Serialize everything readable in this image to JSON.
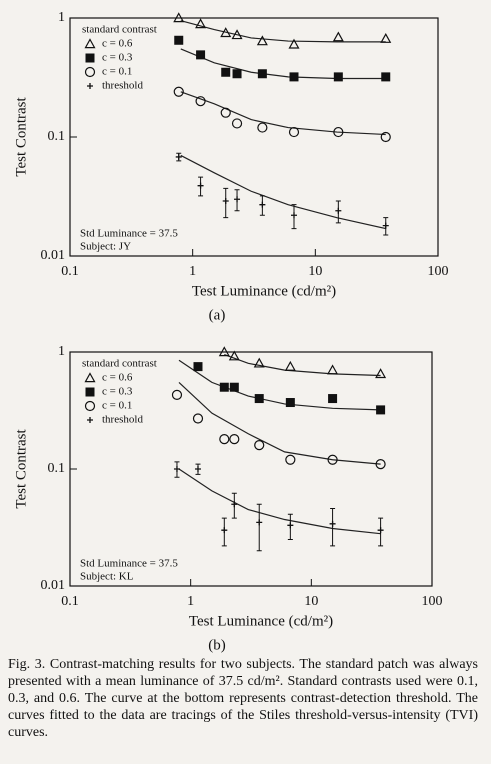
{
  "chart_data": [
    {
      "type": "scatter",
      "panel_label": "(a)",
      "xlabel": "Test Luminance (cd/m²)",
      "ylabel": "Test Contrast",
      "log_x": true,
      "log_y": true,
      "xlim": [
        0.1,
        100
      ],
      "ylim": [
        0.01,
        1
      ],
      "xticks": [
        0.1,
        1,
        10,
        100
      ],
      "yticks": [
        0.01,
        0.1,
        1
      ],
      "legend": "upper left",
      "legend_title": "standard contrast",
      "annotations": [
        "Std Luminance = 37.5",
        "Subject: JY"
      ],
      "series": [
        {
          "name": "c = 0.6",
          "marker": "triangle",
          "color": "#111111",
          "x": [
            0.77,
            1.16,
            1.86,
            2.3,
            3.7,
            6.7,
            15.4,
            37.5
          ],
          "values": [
            1.0,
            0.89,
            0.75,
            0.72,
            0.64,
            0.6,
            0.69,
            0.67
          ]
        },
        {
          "name": "c = 0.3",
          "marker": "square",
          "color": "#111111",
          "x": [
            0.77,
            1.16,
            1.86,
            2.3,
            3.7,
            6.7,
            15.4,
            37.5
          ],
          "values": [
            0.65,
            0.49,
            0.35,
            0.34,
            0.34,
            0.32,
            0.32,
            0.32
          ]
        },
        {
          "name": "c = 0.1",
          "marker": "circle",
          "color": "#111111",
          "x": [
            0.77,
            1.16,
            1.86,
            2.3,
            3.7,
            6.7,
            15.4,
            37.5
          ],
          "values": [
            0.24,
            0.2,
            0.16,
            0.13,
            0.12,
            0.11,
            0.11,
            0.1
          ]
        },
        {
          "name": "threshold",
          "marker": "plus",
          "color": "#111111",
          "x": [
            0.77,
            1.16,
            1.86,
            2.3,
            3.7,
            6.7,
            15.4,
            37.5
          ],
          "values": [
            0.068,
            0.039,
            0.029,
            0.03,
            0.027,
            0.022,
            0.024,
            0.018
          ],
          "errors": [
            0.005,
            0.007,
            0.008,
            0.006,
            0.005,
            0.005,
            0.005,
            0.003
          ]
        }
      ],
      "fits": [
        {
          "x": [
            0.8,
            1.5,
            3,
            6,
            15,
            37.5
          ],
          "values": [
            0.95,
            0.8,
            0.68,
            0.64,
            0.63,
            0.63
          ]
        },
        {
          "x": [
            0.8,
            1.5,
            3,
            6,
            15,
            37.5
          ],
          "values": [
            0.55,
            0.42,
            0.35,
            0.32,
            0.31,
            0.31
          ]
        },
        {
          "x": [
            0.8,
            1.5,
            3,
            6,
            15,
            37.5
          ],
          "values": [
            0.24,
            0.19,
            0.14,
            0.12,
            0.11,
            0.105
          ]
        },
        {
          "x": [
            0.8,
            1.5,
            3,
            6,
            15,
            37.5
          ],
          "values": [
            0.07,
            0.05,
            0.035,
            0.027,
            0.021,
            0.017
          ]
        }
      ]
    },
    {
      "type": "scatter",
      "panel_label": "(b)",
      "xlabel": "Test Luminance (cd/m²)",
      "ylabel": "Test Contrast",
      "log_x": true,
      "log_y": true,
      "xlim": [
        0.1,
        100
      ],
      "ylim": [
        0.01,
        1
      ],
      "xticks": [
        0.1,
        1,
        10,
        100
      ],
      "yticks": [
        0.01,
        0.1,
        1
      ],
      "legend": "upper left",
      "legend_title": "standard contrast",
      "annotations": [
        "Std Luminance = 37.5",
        "Subject: KL"
      ],
      "series": [
        {
          "name": "c = 0.6",
          "marker": "triangle",
          "color": "#111111",
          "x": [
            1.9,
            2.3,
            3.7,
            6.7,
            15,
            37.5
          ],
          "values": [
            1.0,
            0.92,
            0.8,
            0.75,
            0.7,
            0.65
          ]
        },
        {
          "name": "c = 0.3",
          "marker": "square",
          "color": "#111111",
          "x": [
            1.15,
            1.9,
            2.3,
            3.7,
            6.7,
            15,
            37.5
          ],
          "values": [
            0.75,
            0.5,
            0.5,
            0.4,
            0.37,
            0.4,
            0.32
          ]
        },
        {
          "name": "c = 0.1",
          "marker": "circle",
          "color": "#111111",
          "x": [
            0.77,
            1.15,
            1.9,
            2.3,
            3.7,
            6.7,
            15,
            37.5
          ],
          "values": [
            0.43,
            0.27,
            0.18,
            0.18,
            0.16,
            0.12,
            0.12,
            0.11
          ]
        },
        {
          "name": "threshold",
          "marker": "plus",
          "color": "#111111",
          "x": [
            0.77,
            1.15,
            1.9,
            2.3,
            3.7,
            6.7,
            15,
            37.5
          ],
          "values": [
            0.1,
            0.1,
            0.03,
            0.05,
            0.035,
            0.033,
            0.034,
            0.03
          ],
          "errors": [
            0.015,
            0.01,
            0.008,
            0.012,
            0.015,
            0.008,
            0.012,
            0.008
          ]
        }
      ],
      "fits": [
        {
          "x": [
            1.9,
            3,
            6,
            15,
            37.5
          ],
          "values": [
            0.95,
            0.8,
            0.7,
            0.65,
            0.63
          ]
        },
        {
          "x": [
            0.8,
            1.5,
            3,
            6,
            15,
            37.5
          ],
          "values": [
            0.85,
            0.55,
            0.42,
            0.36,
            0.33,
            0.32
          ]
        },
        {
          "x": [
            0.8,
            1.5,
            3,
            6,
            15,
            37.5
          ],
          "values": [
            0.55,
            0.3,
            0.2,
            0.14,
            0.12,
            0.11
          ]
        },
        {
          "x": [
            0.8,
            1.5,
            3,
            6,
            15,
            37.5
          ],
          "values": [
            0.1,
            0.065,
            0.045,
            0.037,
            0.031,
            0.028
          ]
        }
      ]
    }
  ],
  "caption": "Fig. 3. Contrast-matching results for two subjects. The standard patch was always presented with a mean luminance of 37.5 cd/m². Standard contrasts used were 0.1, 0.3, and 0.6. The curve at the bottom represents contrast-detection threshold. The curves fitted to the data are tracings of the Stiles threshold-versus-intensity (TVI) curves."
}
